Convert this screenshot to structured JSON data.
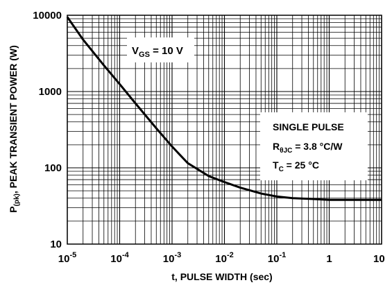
{
  "chart_data": {
    "type": "line",
    "title": "",
    "xlabel": "t, PULSE WIDTH (sec)",
    "ylabel": {
      "prefix": "P",
      "sub": "(pk)",
      "rest": ", PEAK TRANSIENT POWER (W)"
    },
    "x_scale": "log",
    "y_scale": "log",
    "xlim": [
      1e-05,
      10
    ],
    "ylim": [
      10,
      10000
    ],
    "grid": true,
    "x_ticks": [
      {
        "base": "10",
        "exp": "-5"
      },
      {
        "base": "10",
        "exp": "-4"
      },
      {
        "base": "10",
        "exp": "-3"
      },
      {
        "base": "10",
        "exp": "-2"
      },
      {
        "base": "10",
        "exp": "-1"
      },
      {
        "base": "1",
        "exp": ""
      },
      {
        "base": "10",
        "exp": ""
      }
    ],
    "y_ticks": [
      "10000",
      "1000",
      "100",
      "10"
    ],
    "series": [
      {
        "x": [
          1e-05,
          2e-05,
          5e-05,
          0.0001,
          0.0002,
          0.0005,
          0.001,
          0.002,
          0.005,
          0.01,
          0.02,
          0.05,
          0.1,
          0.2,
          0.5,
          1,
          2,
          5,
          10
        ],
        "y": [
          9500,
          4800,
          2200,
          1250,
          700,
          330,
          190,
          115,
          78,
          65,
          55,
          46,
          42,
          40,
          39,
          38,
          38,
          38,
          38
        ]
      }
    ],
    "annotations": {
      "vgs": {
        "main": "V",
        "sub": "GS",
        "rest": " = 10 V"
      },
      "single_pulse": "SINGLE PULSE",
      "rthjc": {
        "main": "R",
        "sub": "θJC",
        "rest": " = 3.8 °C/W"
      },
      "tc": {
        "main": "T",
        "sub": "C",
        "rest": " = 25 °C"
      }
    }
  }
}
